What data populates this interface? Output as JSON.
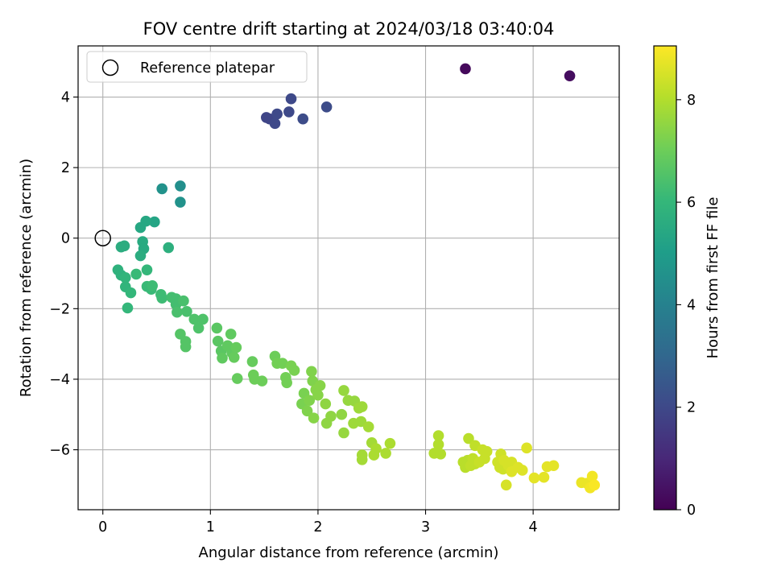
{
  "chart_data": {
    "type": "scatter",
    "title": "FOV centre drift starting at 2024/03/18 03:40:04",
    "xlabel": "Angular distance from reference (arcmin)",
    "ylabel": "Rotation from reference (arcmin)",
    "xlim": [
      -0.23,
      4.8
    ],
    "ylim": [
      -7.7,
      5.45
    ],
    "xticks": [
      0,
      1,
      2,
      3,
      4
    ],
    "yticks": [
      -6,
      -4,
      -2,
      0,
      2,
      4
    ],
    "grid": true,
    "legend": {
      "placement": "top-left",
      "entries": [
        "Reference platepar"
      ]
    },
    "reference_point": {
      "x": 0,
      "y": 0,
      "label": "Reference platepar"
    },
    "colorbar": {
      "label": "Hours from first FF file",
      "range": [
        0,
        9.05
      ],
      "ticks": [
        0,
        2,
        4,
        6,
        8
      ],
      "colormap": "viridis"
    },
    "colormap_stops": [
      "#440154",
      "#482878",
      "#3e4989",
      "#31688e",
      "#26828e",
      "#1f9e89",
      "#35b779",
      "#6ece58",
      "#b5de2b",
      "#fde725"
    ],
    "points": [
      {
        "x": 3.37,
        "y": 4.8,
        "c": 0.2
      },
      {
        "x": 4.34,
        "y": 4.6,
        "c": 0.3
      },
      {
        "x": 1.52,
        "y": 3.42,
        "c": 1.9
      },
      {
        "x": 1.55,
        "y": 3.38,
        "c": 1.9
      },
      {
        "x": 1.6,
        "y": 3.25,
        "c": 2.0
      },
      {
        "x": 1.62,
        "y": 3.52,
        "c": 2.0
      },
      {
        "x": 1.73,
        "y": 3.58,
        "c": 2.0
      },
      {
        "x": 1.75,
        "y": 3.95,
        "c": 2.0
      },
      {
        "x": 1.86,
        "y": 3.38,
        "c": 2.1
      },
      {
        "x": 2.08,
        "y": 3.72,
        "c": 2.1
      },
      {
        "x": 0.72,
        "y": 1.48,
        "c": 4.5
      },
      {
        "x": 0.55,
        "y": 1.4,
        "c": 4.6
      },
      {
        "x": 0.72,
        "y": 1.02,
        "c": 4.6
      },
      {
        "x": 0.48,
        "y": 0.46,
        "c": 5.3
      },
      {
        "x": 0.4,
        "y": 0.48,
        "c": 5.4
      },
      {
        "x": 0.35,
        "y": 0.3,
        "c": 5.4
      },
      {
        "x": 0.37,
        "y": -0.1,
        "c": 5.5
      },
      {
        "x": 0.38,
        "y": -0.3,
        "c": 5.5
      },
      {
        "x": 0.35,
        "y": -0.5,
        "c": 5.6
      },
      {
        "x": 0.17,
        "y": -0.25,
        "c": 5.6
      },
      {
        "x": 0.2,
        "y": -0.22,
        "c": 5.6
      },
      {
        "x": 0.61,
        "y": -0.27,
        "c": 5.7
      },
      {
        "x": 0.14,
        "y": -0.9,
        "c": 5.8
      },
      {
        "x": 0.17,
        "y": -1.05,
        "c": 5.8
      },
      {
        "x": 0.21,
        "y": -1.12,
        "c": 5.9
      },
      {
        "x": 0.21,
        "y": -1.38,
        "c": 5.9
      },
      {
        "x": 0.26,
        "y": -1.55,
        "c": 6.0
      },
      {
        "x": 0.23,
        "y": -1.98,
        "c": 6.0
      },
      {
        "x": 0.41,
        "y": -0.9,
        "c": 6.0
      },
      {
        "x": 0.31,
        "y": -1.02,
        "c": 6.1
      },
      {
        "x": 0.41,
        "y": -1.37,
        "c": 6.1
      },
      {
        "x": 0.45,
        "y": -1.45,
        "c": 6.1
      },
      {
        "x": 0.46,
        "y": -1.35,
        "c": 6.2
      },
      {
        "x": 0.54,
        "y": -1.6,
        "c": 6.2
      },
      {
        "x": 0.55,
        "y": -1.7,
        "c": 6.2
      },
      {
        "x": 0.64,
        "y": -1.68,
        "c": 6.3
      },
      {
        "x": 0.68,
        "y": -1.72,
        "c": 6.3
      },
      {
        "x": 0.68,
        "y": -1.88,
        "c": 6.3
      },
      {
        "x": 0.69,
        "y": -2.1,
        "c": 6.4
      },
      {
        "x": 0.75,
        "y": -1.78,
        "c": 6.4
      },
      {
        "x": 0.78,
        "y": -2.08,
        "c": 6.4
      },
      {
        "x": 0.85,
        "y": -2.3,
        "c": 6.5
      },
      {
        "x": 0.89,
        "y": -2.55,
        "c": 6.5
      },
      {
        "x": 0.93,
        "y": -2.3,
        "c": 6.5
      },
      {
        "x": 0.72,
        "y": -2.72,
        "c": 6.6
      },
      {
        "x": 0.77,
        "y": -2.93,
        "c": 6.6
      },
      {
        "x": 0.77,
        "y": -3.08,
        "c": 6.6
      },
      {
        "x": 1.06,
        "y": -2.55,
        "c": 6.7
      },
      {
        "x": 1.07,
        "y": -2.92,
        "c": 6.7
      },
      {
        "x": 1.1,
        "y": -3.2,
        "c": 6.7
      },
      {
        "x": 1.11,
        "y": -3.4,
        "c": 6.8
      },
      {
        "x": 1.16,
        "y": -3.05,
        "c": 6.8
      },
      {
        "x": 1.19,
        "y": -2.72,
        "c": 6.8
      },
      {
        "x": 1.2,
        "y": -3.25,
        "c": 6.8
      },
      {
        "x": 1.22,
        "y": -3.38,
        "c": 6.9
      },
      {
        "x": 1.24,
        "y": -3.1,
        "c": 6.9
      },
      {
        "x": 1.25,
        "y": -3.98,
        "c": 6.9
      },
      {
        "x": 1.39,
        "y": -3.5,
        "c": 6.9
      },
      {
        "x": 1.4,
        "y": -3.88,
        "c": 7.0
      },
      {
        "x": 1.41,
        "y": -4.0,
        "c": 7.0
      },
      {
        "x": 1.48,
        "y": -4.05,
        "c": 7.0
      },
      {
        "x": 1.6,
        "y": -3.35,
        "c": 7.0
      },
      {
        "x": 1.62,
        "y": -3.55,
        "c": 7.1
      },
      {
        "x": 1.67,
        "y": -3.55,
        "c": 7.1
      },
      {
        "x": 1.7,
        "y": -3.95,
        "c": 7.1
      },
      {
        "x": 1.71,
        "y": -4.1,
        "c": 7.1
      },
      {
        "x": 1.75,
        "y": -3.62,
        "c": 7.2
      },
      {
        "x": 1.78,
        "y": -3.75,
        "c": 7.2
      },
      {
        "x": 1.85,
        "y": -4.7,
        "c": 7.2
      },
      {
        "x": 1.87,
        "y": -4.4,
        "c": 7.2
      },
      {
        "x": 1.9,
        "y": -4.9,
        "c": 7.3
      },
      {
        "x": 1.92,
        "y": -4.6,
        "c": 7.3
      },
      {
        "x": 1.94,
        "y": -3.78,
        "c": 7.3
      },
      {
        "x": 1.95,
        "y": -4.05,
        "c": 7.3
      },
      {
        "x": 1.98,
        "y": -4.3,
        "c": 7.4
      },
      {
        "x": 2.0,
        "y": -4.45,
        "c": 7.4
      },
      {
        "x": 2.02,
        "y": -4.18,
        "c": 7.4
      },
      {
        "x": 1.96,
        "y": -5.1,
        "c": 7.4
      },
      {
        "x": 2.07,
        "y": -4.7,
        "c": 7.5
      },
      {
        "x": 2.08,
        "y": -5.25,
        "c": 7.5
      },
      {
        "x": 2.12,
        "y": -5.05,
        "c": 7.5
      },
      {
        "x": 2.22,
        "y": -5.0,
        "c": 7.5
      },
      {
        "x": 2.24,
        "y": -5.52,
        "c": 7.6
      },
      {
        "x": 2.24,
        "y": -4.32,
        "c": 7.6
      },
      {
        "x": 2.28,
        "y": -4.6,
        "c": 7.6
      },
      {
        "x": 2.34,
        "y": -4.62,
        "c": 7.6
      },
      {
        "x": 2.38,
        "y": -4.82,
        "c": 7.7
      },
      {
        "x": 2.41,
        "y": -4.78,
        "c": 7.7
      },
      {
        "x": 2.33,
        "y": -5.25,
        "c": 7.7
      },
      {
        "x": 2.4,
        "y": -5.2,
        "c": 7.7
      },
      {
        "x": 2.47,
        "y": -5.35,
        "c": 7.8
      },
      {
        "x": 2.41,
        "y": -6.15,
        "c": 7.8
      },
      {
        "x": 2.41,
        "y": -6.28,
        "c": 7.8
      },
      {
        "x": 2.5,
        "y": -5.8,
        "c": 7.8
      },
      {
        "x": 2.54,
        "y": -5.97,
        "c": 7.9
      },
      {
        "x": 2.52,
        "y": -6.15,
        "c": 7.9
      },
      {
        "x": 2.63,
        "y": -6.1,
        "c": 7.9
      },
      {
        "x": 2.67,
        "y": -5.82,
        "c": 7.9
      },
      {
        "x": 3.08,
        "y": -6.1,
        "c": 8.0
      },
      {
        "x": 3.12,
        "y": -5.85,
        "c": 8.0
      },
      {
        "x": 3.12,
        "y": -5.6,
        "c": 8.0
      },
      {
        "x": 3.14,
        "y": -6.12,
        "c": 8.0
      },
      {
        "x": 3.35,
        "y": -6.35,
        "c": 8.1
      },
      {
        "x": 3.37,
        "y": -6.5,
        "c": 8.1
      },
      {
        "x": 3.39,
        "y": -6.3,
        "c": 8.1
      },
      {
        "x": 3.4,
        "y": -5.68,
        "c": 8.1
      },
      {
        "x": 3.42,
        "y": -6.45,
        "c": 8.2
      },
      {
        "x": 3.44,
        "y": -6.25,
        "c": 8.2
      },
      {
        "x": 3.46,
        "y": -6.4,
        "c": 8.2
      },
      {
        "x": 3.46,
        "y": -5.88,
        "c": 8.2
      },
      {
        "x": 3.5,
        "y": -6.35,
        "c": 8.3
      },
      {
        "x": 3.53,
        "y": -6.0,
        "c": 8.3
      },
      {
        "x": 3.55,
        "y": -6.25,
        "c": 8.3
      },
      {
        "x": 3.57,
        "y": -6.05,
        "c": 8.3
      },
      {
        "x": 3.67,
        "y": -6.35,
        "c": 8.4
      },
      {
        "x": 3.69,
        "y": -6.5,
        "c": 8.4
      },
      {
        "x": 3.7,
        "y": -6.12,
        "c": 8.4
      },
      {
        "x": 3.72,
        "y": -6.55,
        "c": 8.4
      },
      {
        "x": 3.73,
        "y": -6.3,
        "c": 8.5
      },
      {
        "x": 3.75,
        "y": -7.0,
        "c": 8.5
      },
      {
        "x": 3.77,
        "y": -6.45,
        "c": 8.5
      },
      {
        "x": 3.8,
        "y": -6.35,
        "c": 8.5
      },
      {
        "x": 3.8,
        "y": -6.62,
        "c": 8.6
      },
      {
        "x": 3.86,
        "y": -6.5,
        "c": 8.6
      },
      {
        "x": 3.9,
        "y": -6.58,
        "c": 8.6
      },
      {
        "x": 3.94,
        "y": -5.95,
        "c": 8.6
      },
      {
        "x": 4.01,
        "y": -6.8,
        "c": 8.7
      },
      {
        "x": 4.1,
        "y": -6.78,
        "c": 8.7
      },
      {
        "x": 4.13,
        "y": -6.48,
        "c": 8.7
      },
      {
        "x": 4.19,
        "y": -6.45,
        "c": 8.7
      },
      {
        "x": 4.45,
        "y": -6.93,
        "c": 8.8
      },
      {
        "x": 4.5,
        "y": -6.95,
        "c": 8.8
      },
      {
        "x": 4.53,
        "y": -7.08,
        "c": 8.9
      },
      {
        "x": 4.55,
        "y": -6.75,
        "c": 8.9
      },
      {
        "x": 4.57,
        "y": -7.0,
        "c": 9.0
      }
    ]
  }
}
